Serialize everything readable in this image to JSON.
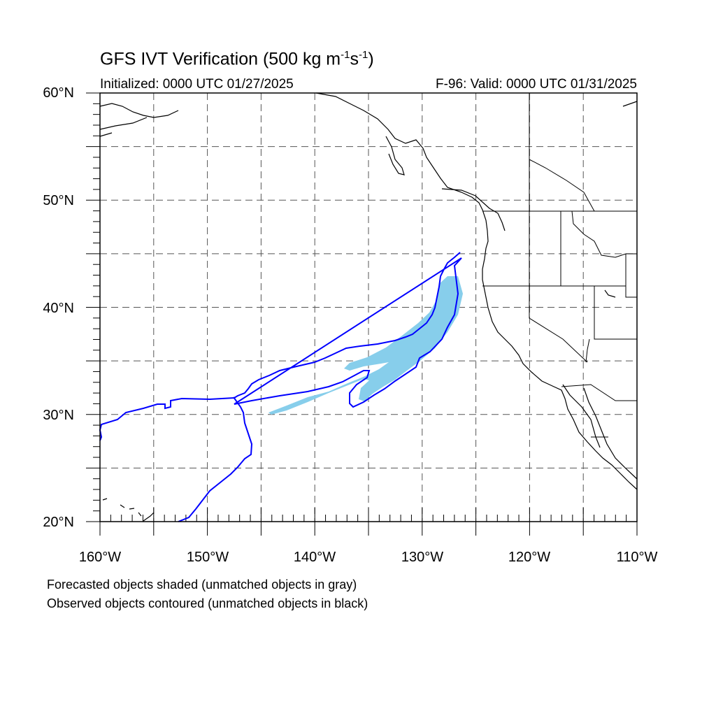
{
  "title": {
    "main": "GFS IVT Verification (500 kg m",
    "exp1": "-1",
    "mid": "s",
    "exp2": "-1",
    "close": ")"
  },
  "subtitle": {
    "initialized": "Initialized: 0000 UTC 01/27/2025",
    "valid": "F-96: Valid: 0000 UTC 01/31/2025"
  },
  "map": {
    "lon_range": [
      -160,
      -110
    ],
    "lat_range": [
      20,
      60
    ],
    "grid_lon_step": 5,
    "grid_lat_step": 5,
    "lat_labels": [
      "60°N",
      "50°N",
      "40°N",
      "30°N",
      "20°N"
    ],
    "lon_labels": [
      "160°W",
      "150°W",
      "140°W",
      "130°W",
      "120°W",
      "110°W"
    ],
    "forecast_color": "#87ceeb",
    "observed_color": "#0000ff",
    "coast_color": "#000000",
    "grid_color": "#555555"
  },
  "footnotes": [
    "Forecasted objects shaded (unmatched objects in gray)",
    "Observed objects contoured (unmatched objects in black)"
  ]
}
